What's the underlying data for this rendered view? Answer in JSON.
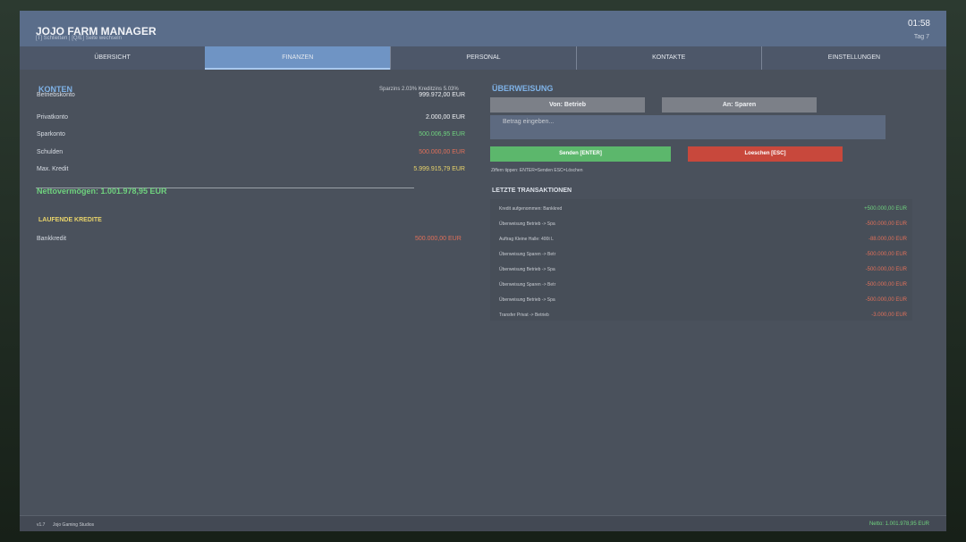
{
  "header": {
    "title": "JOJO FARM MANAGER",
    "subtitle": "[T] Schließen | [Q/E] Seite wechseln",
    "time": "01:58",
    "day": "Tag 7"
  },
  "tabs": [
    "ÜBERSICHT",
    "FINANZEN",
    "PERSONAL",
    "KONTAKTE",
    "EINSTELLUNGEN"
  ],
  "accounts": {
    "title": "KONTEN",
    "rates": "Sparzins 2.03%  Kreditzins 5.03%",
    "rows": [
      [
        "Betriebskonto",
        "999.972,00 EUR"
      ],
      [
        "Privatkonto",
        "2.000,00 EUR"
      ],
      [
        "Sparkonto",
        "500.006,95 EUR"
      ],
      [
        "Schulden",
        "500.000,00 EUR"
      ],
      [
        "Max. Kredit",
        "5.999.915,79 EUR"
      ]
    ],
    "net_worth": "Nettovermögen: 1.001.978,95 EUR"
  },
  "loans": {
    "title": "LAUFENDE KREDITE",
    "rows": [
      [
        "Bankkredit",
        "500.000,00 EUR"
      ]
    ]
  },
  "transfer": {
    "title": "ÜBERWEISUNG",
    "from": "Von: Betrieb",
    "to": "An: Sparen",
    "input": "Betrag eingeben...",
    "send": "Senden [ENTER]",
    "clear": "Loeschen [ESC]",
    "hint": "Ziffern tippen: ENTER=Senden ESC=Löschen"
  },
  "transactions": {
    "title": "LETZTE TRANSAKTIONEN",
    "rows": [
      [
        "Kredit aufgenommen: Bankkred",
        "+500.000,00 EUR"
      ],
      [
        "Überweisung Betrieb -> Spa",
        "-500.000,00 EUR"
      ],
      [
        "Auftrag Kleine Halle: 400t L",
        "-88.000,00 EUR"
      ],
      [
        "Überweisung Sparen -> Betr",
        "-500.000,00 EUR"
      ],
      [
        "Überweisung Betrieb -> Spa",
        "-500.000,00 EUR"
      ],
      [
        "Überweisung Sparen -> Betr",
        "-500.000,00 EUR"
      ],
      [
        "Überweisung Betrieb -> Spa",
        "-500.000,00 EUR"
      ],
      [
        "Transfer Privat -> Betrieb",
        "-3.000,00 EUR"
      ]
    ]
  },
  "footer": {
    "version": "v1.7",
    "studio": "Jojo Gaming Studios",
    "net": "Netto: 1.001.978,95 EUR"
  }
}
